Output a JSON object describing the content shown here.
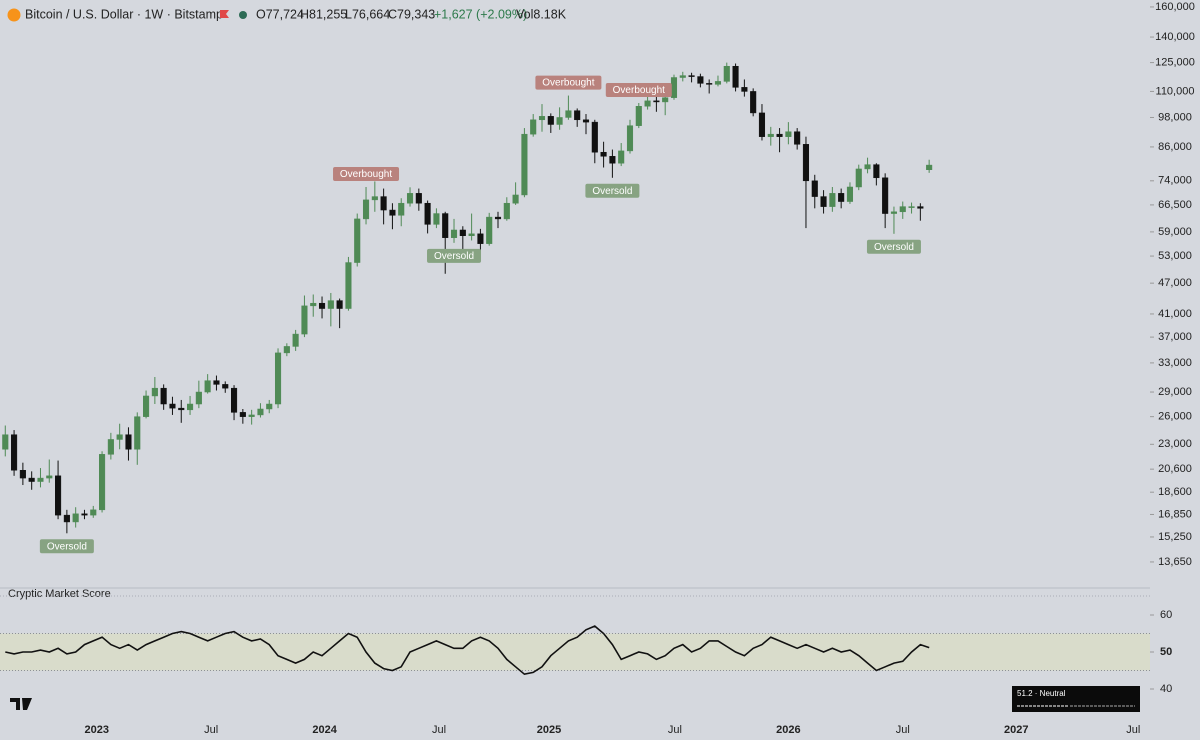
{
  "header": {
    "symbol": "Bitcoin / U.S. Dollar · 1W · Bitstamp",
    "quote": [
      "O77,724",
      "H81,255",
      "L76,664",
      "C79,343",
      "+1,627 (+2.09%)",
      "Vol8.18K"
    ]
  },
  "chart_data": [
    {
      "type": "candlestick",
      "log_scale": true,
      "up_color": "#4f8a55",
      "down_color": "#111111",
      "ylim": [
        12600,
        165000
      ],
      "yticks": [
        {
          "value": 160000,
          "label": "160,000"
        },
        {
          "value": 140000,
          "label": "140,000"
        },
        {
          "value": 125000,
          "label": "125,000"
        },
        {
          "value": 110000,
          "label": "110,000"
        },
        {
          "value": 98000,
          "label": "98,000"
        },
        {
          "value": 86000,
          "label": "86,000"
        },
        {
          "value": 74000,
          "label": "74,000"
        },
        {
          "value": 66500,
          "label": "66,500"
        },
        {
          "value": 59000,
          "label": "59,000"
        },
        {
          "value": 53000,
          "label": "53,000"
        },
        {
          "value": 47000,
          "label": "47,000"
        },
        {
          "value": 41000,
          "label": "41,000"
        },
        {
          "value": 37000,
          "label": "37,000"
        },
        {
          "value": 33000,
          "label": "33,000"
        },
        {
          "value": 29000,
          "label": "29,000"
        },
        {
          "value": 26000,
          "label": "26,000"
        },
        {
          "value": 23000,
          "label": "23,000"
        },
        {
          "value": 20600,
          "label": "20,600"
        },
        {
          "value": 18600,
          "label": "18,600"
        },
        {
          "value": 16850,
          "label": "16,850"
        },
        {
          "value": 15250,
          "label": "15,250"
        },
        {
          "value": 13650,
          "label": "13,650"
        }
      ],
      "xlim": [
        -0.6,
        130.1
      ],
      "xticks": [
        {
          "value": 10.4,
          "label": "2023"
        },
        {
          "value": 23.4,
          "label": "Jul"
        },
        {
          "value": 36.3,
          "label": "2024"
        },
        {
          "value": 49.3,
          "label": "Jul"
        },
        {
          "value": 61.8,
          "label": "2025"
        },
        {
          "value": 76.1,
          "label": "Jul"
        },
        {
          "value": 89,
          "label": "2026"
        },
        {
          "value": 102,
          "label": "Jul"
        },
        {
          "value": 114.9,
          "label": "2027"
        },
        {
          "value": 128.2,
          "label": "Jul"
        }
      ],
      "open": [
        22500,
        24000,
        20500,
        19800,
        19500,
        19800,
        20000,
        16800,
        16300,
        16900,
        16800,
        17200,
        22000,
        23500,
        24000,
        22500,
        26000,
        28500,
        29500,
        27500,
        27000,
        26800,
        27500,
        29000,
        30500,
        30000,
        29500,
        26500,
        26000,
        26200,
        26900,
        27500,
        34500,
        35500,
        37500,
        42500,
        43000,
        42000,
        43500,
        42000,
        51500,
        62500,
        68000,
        69000,
        65000,
        63500,
        67000,
        70000,
        67000,
        61000,
        64000,
        57500,
        59500,
        58000,
        58500,
        56000,
        63000,
        62500,
        67000,
        69500,
        91000,
        97000,
        98500,
        95000,
        98000,
        101000,
        97000,
        96000,
        84000,
        82500,
        80000,
        84500,
        94500,
        103000,
        105500,
        105000,
        107000,
        117000,
        118000,
        117500,
        114000,
        113500,
        115000,
        123000,
        112000,
        110000,
        100000,
        90000,
        91000,
        90000,
        92000,
        87000,
        74000,
        69000,
        66000,
        70000,
        67500,
        72000,
        78000,
        79500,
        75000,
        64000,
        64500,
        66000,
        66000,
        77724
      ],
      "high": [
        25000,
        24500,
        21200,
        20400,
        20700,
        21500,
        21400,
        17200,
        17400,
        17200,
        17500,
        22300,
        24200,
        25200,
        24800,
        26500,
        29200,
        31000,
        30000,
        28400,
        28000,
        28500,
        30500,
        31400,
        31200,
        30400,
        29900,
        26900,
        26800,
        27600,
        28000,
        35200,
        36000,
        38200,
        44500,
        44700,
        44300,
        45000,
        43900,
        52800,
        64000,
        72000,
        73800,
        71500,
        67000,
        68500,
        71900,
        71500,
        67800,
        65500,
        64500,
        62500,
        60500,
        64000,
        59800,
        64200,
        64500,
        68800,
        73500,
        93500,
        99500,
        104000,
        99800,
        102500,
        108000,
        102000,
        99500,
        97000,
        88000,
        85000,
        87500,
        97000,
        104500,
        110000,
        107500,
        110500,
        118500,
        120000,
        119500,
        119000,
        116000,
        118000,
        125000,
        124500,
        116000,
        111500,
        104000,
        94000,
        93500,
        96000,
        93500,
        90000,
        76000,
        71000,
        72000,
        71500,
        73500,
        79500,
        82000,
        80000,
        76500,
        66000,
        67500,
        67200,
        67000,
        81255
      ],
      "low": [
        21800,
        20000,
        19200,
        18800,
        19000,
        19400,
        16500,
        15500,
        15900,
        16500,
        16600,
        17000,
        21500,
        22500,
        21400,
        21000,
        25800,
        27500,
        26800,
        26200,
        25300,
        26200,
        27000,
        28800,
        29200,
        28900,
        25600,
        25200,
        25100,
        25900,
        26400,
        27000,
        34000,
        34800,
        37000,
        40500,
        40200,
        38800,
        38500,
        41600,
        50600,
        61000,
        64500,
        61000,
        59700,
        60500,
        66000,
        64800,
        58600,
        60000,
        49000,
        56200,
        53500,
        56800,
        52600,
        55500,
        60000,
        62000,
        66500,
        68800,
        90000,
        92000,
        91500,
        92800,
        97000,
        94000,
        91000,
        80000,
        78500,
        75000,
        79000,
        83500,
        93500,
        101500,
        100500,
        99000,
        106000,
        115000,
        114500,
        112000,
        109000,
        112500,
        114000,
        110000,
        107500,
        98500,
        88500,
        86500,
        84000,
        87000,
        85000,
        60000,
        65500,
        64000,
        64500,
        65500,
        66800,
        71000,
        76500,
        72500,
        60000,
        58500,
        62500,
        64000,
        62000,
        76664
      ],
      "close": [
        24000,
        20500,
        19800,
        19500,
        19800,
        20000,
        16800,
        16300,
        16900,
        16800,
        17200,
        22000,
        23500,
        24000,
        22500,
        26000,
        28500,
        29500,
        27500,
        27000,
        26800,
        27500,
        29000,
        30500,
        30000,
        29500,
        26500,
        26000,
        26200,
        26900,
        27500,
        34500,
        35500,
        37500,
        42500,
        43000,
        42000,
        43500,
        42000,
        51500,
        62500,
        68000,
        69000,
        65000,
        63500,
        67000,
        70000,
        67000,
        61000,
        64000,
        57500,
        59500,
        58000,
        58500,
        56000,
        63000,
        62500,
        67000,
        69500,
        91000,
        97000,
        98500,
        95000,
        98000,
        101000,
        97000,
        96000,
        84000,
        82500,
        80000,
        84500,
        94500,
        103000,
        105500,
        105000,
        107000,
        117000,
        118000,
        117500,
        114000,
        113500,
        115000,
        123000,
        112000,
        110000,
        100000,
        90000,
        91000,
        90000,
        92000,
        87000,
        74000,
        69000,
        66000,
        70000,
        67500,
        72000,
        78000,
        79500,
        75000,
        64000,
        64500,
        66000,
        66000,
        65500,
        79343
      ],
      "signals": [
        {
          "text": "Oversold",
          "candle": 7,
          "position": "below",
          "color": "#87a382"
        },
        {
          "text": "Overbought",
          "candle": 41,
          "position": "above",
          "color": "#b9827d"
        },
        {
          "text": "Oversold",
          "candle": 51,
          "position": "below",
          "color": "#87a382"
        },
        {
          "text": "Overbought",
          "candle": 64,
          "position": "above",
          "color": "#b9827d"
        },
        {
          "text": "Oversold",
          "candle": 69,
          "position": "below",
          "color": "#87a382"
        },
        {
          "text": "Overbought",
          "candle": 72,
          "position": "above",
          "color": "#b9827d"
        },
        {
          "text": "Oversold",
          "candle": 101,
          "position": "below",
          "color": "#87a382"
        }
      ]
    },
    {
      "type": "line",
      "title": "Cryptic Market Score",
      "color": "#111111",
      "ylim": [
        35,
        65
      ],
      "yticks": [
        40,
        50,
        60
      ],
      "band": [
        45,
        55
      ],
      "status_label": "51.2 · Neutral",
      "values": [
        50,
        49.5,
        50,
        50,
        50.5,
        50,
        51,
        49.5,
        50,
        52,
        53,
        54,
        52,
        51,
        52,
        50.5,
        52,
        53,
        54,
        55,
        55.5,
        55,
        54,
        53,
        54,
        55,
        55.5,
        54,
        53,
        53.5,
        52,
        49,
        48,
        47,
        48,
        50,
        49,
        51,
        53,
        55,
        54,
        50,
        47,
        45.5,
        45,
        46,
        50,
        51,
        52,
        53,
        52,
        51,
        51,
        53,
        54,
        53,
        51,
        48,
        46,
        44,
        44.5,
        46,
        49,
        51,
        53,
        54,
        56,
        57,
        55,
        52,
        48,
        49,
        50,
        49.5,
        48,
        49,
        51,
        52,
        50,
        51,
        53,
        53,
        51.5,
        50,
        49,
        51,
        52,
        54,
        53,
        52,
        51,
        52,
        51,
        50,
        51,
        50,
        50.5,
        49,
        47,
        45,
        46,
        47,
        47.5,
        50,
        52,
        51.2
      ]
    }
  ]
}
